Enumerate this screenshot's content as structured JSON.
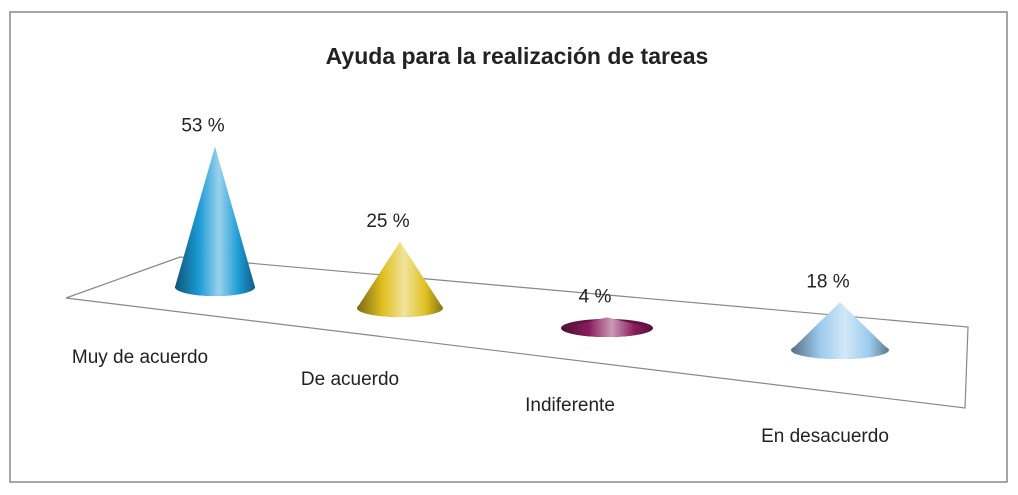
{
  "chart_data": {
    "type": "cone",
    "title": "Ayuda para la realización de tareas",
    "categories": [
      "Muy de acuerdo",
      "De acuerdo",
      "Indiferente",
      "En desacuerdo"
    ],
    "values": [
      53,
      25,
      4,
      18
    ],
    "value_labels": [
      "53 %",
      "25 %",
      "4 %",
      "18 %"
    ],
    "colors": [
      "#1c9ad6",
      "#e0c020",
      "#8a1c5c",
      "#9ccbee"
    ]
  }
}
